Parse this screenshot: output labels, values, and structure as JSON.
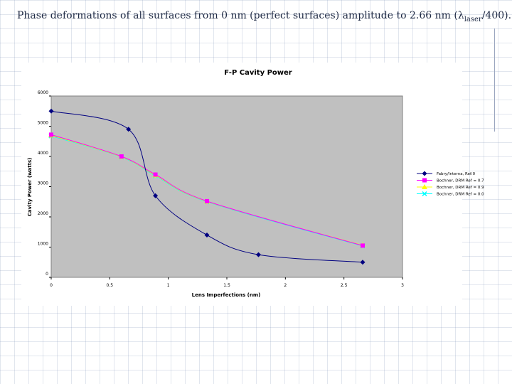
{
  "slide": {
    "title_main": "Phase deformations of all surfaces from 0 nm  (perfect surfaces) amplitude to 2.66 nm (",
    "title_lambda": "λ",
    "title_sub": "laser",
    "title_end": "/400)."
  },
  "chart_data": {
    "type": "line",
    "title": "F-P Cavity Power",
    "xlabel": "Lens Imperfections (nm)",
    "ylabel": "Cavity Power (watts)",
    "xlim": [
      0,
      3
    ],
    "ylim": [
      0,
      6000
    ],
    "x_ticks": [
      0,
      0.5,
      1,
      1.5,
      2,
      2.5,
      3
    ],
    "x_tick_labels": [
      "0",
      "0.5",
      "1",
      "1.5",
      "2",
      "2.5",
      "3"
    ],
    "y_ticks": [
      0,
      1000,
      2000,
      3000,
      4000,
      5000,
      6000
    ],
    "y_tick_labels": [
      "0",
      "1000",
      "2000",
      "3000",
      "4000",
      "5000",
      "6000"
    ],
    "plot_background": "#c0c0c0",
    "grid": false,
    "legend_position": "right",
    "series": [
      {
        "name": "Fabry/Interna, Ref:0",
        "color": "#000080",
        "marker": "diamond",
        "x": [
          0,
          0.66,
          0.89,
          1.33,
          1.77,
          2.66
        ],
        "y": [
          5500,
          4900,
          2700,
          1400,
          750,
          500
        ]
      },
      {
        "name": "Bochner, DRM Ref = 0.7",
        "color": "#ff00ff",
        "marker": "square",
        "x": [
          0,
          0.6,
          0.89,
          1.33,
          2.66
        ],
        "y": [
          4720,
          4000,
          3400,
          2520,
          1050
        ]
      },
      {
        "name": "Bochner, DRM Ref = 0.9",
        "color": "#ffff00",
        "marker": "triangle",
        "x": [
          0,
          0.6,
          0.89,
          1.33,
          2.66
        ],
        "y": [
          4700,
          3990,
          3380,
          2510,
          1060
        ]
      },
      {
        "name": "Bochner, DRM Ref = 0.0",
        "color": "#00ffff",
        "marker": "x",
        "x": [
          0,
          0.6,
          0.89,
          1.33,
          2.66
        ],
        "y": [
          4680,
          3980,
          3360,
          2500,
          1040
        ]
      }
    ]
  }
}
